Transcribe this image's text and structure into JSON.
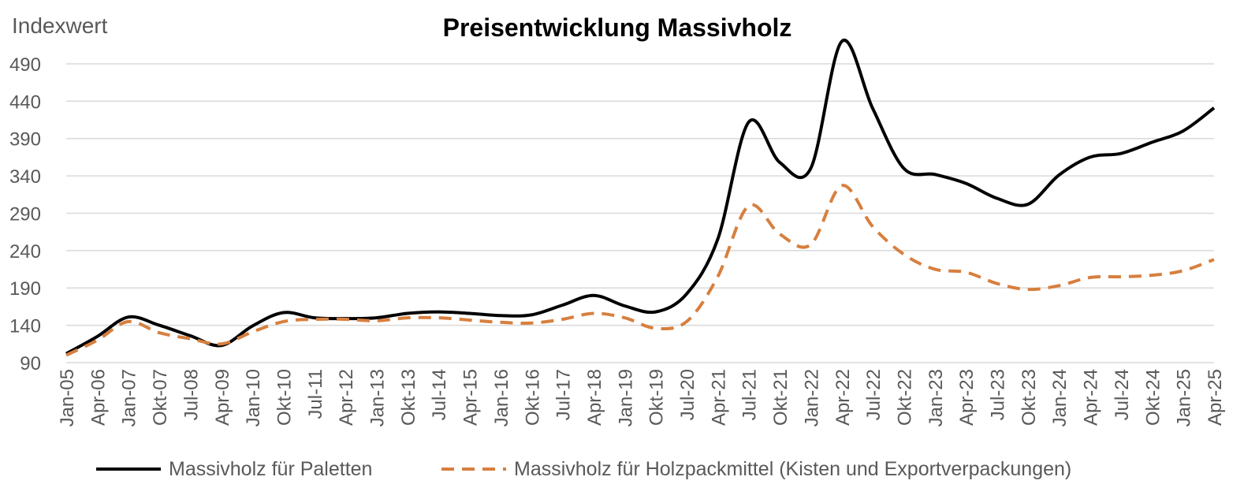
{
  "chart_data": {
    "type": "line",
    "title": "Preisentwicklung Massivholz",
    "ylabel": "Indexwert",
    "xlabel": "",
    "ylim": [
      90,
      510
    ],
    "yticks": [
      90,
      140,
      190,
      240,
      290,
      340,
      390,
      440,
      490
    ],
    "grid": true,
    "legend_position": "bottom",
    "categories": [
      "Jan-05",
      "Apr-06",
      "Jan-07",
      "Okt-07",
      "Jul-08",
      "Apr-09",
      "Jan-10",
      "Okt-10",
      "Jul-11",
      "Apr-12",
      "Jan-13",
      "Okt-13",
      "Jul-14",
      "Apr-15",
      "Jan-16",
      "Okt-16",
      "Jul-17",
      "Apr-18",
      "Jan-19",
      "Okt-19",
      "Jul-20",
      "Apr-21",
      "Jul-21",
      "Okt-21",
      "Jan-22",
      "Apr-22",
      "Jul-22",
      "Okt-22",
      "Jan-23",
      "Apr-23",
      "Jul-23",
      "Okt-23",
      "Jan-24",
      "Apr-24",
      "Jul-24",
      "Okt-24",
      "Jan-25",
      "Apr-25"
    ],
    "x": [
      "Jan-05",
      "Apr-06",
      "Jan-07",
      "Okt-07",
      "Jul-08",
      "Apr-09",
      "Jan-10",
      "Okt-10",
      "Jul-11",
      "Apr-12",
      "Jan-13",
      "Okt-13",
      "Jul-14",
      "Apr-15",
      "Jan-16",
      "Okt-16",
      "Jul-17",
      "Apr-18",
      "Jan-19",
      "Okt-19",
      "Jul-20",
      "Apr-21",
      "Jul-21",
      "Okt-21",
      "Jan-22",
      "Apr-22",
      "Jul-22",
      "Okt-22",
      "Jan-23",
      "Apr-23",
      "Jul-23",
      "Okt-23",
      "Jan-24",
      "Apr-24",
      "Jul-24",
      "Okt-24",
      "Jan-25",
      "Apr-25"
    ],
    "series": [
      {
        "name": "Massivholz für Paletten",
        "color": "#000000",
        "dash": "solid",
        "values": [
          102,
          125,
          151,
          140,
          126,
          113,
          139,
          157,
          150,
          149,
          150,
          156,
          158,
          156,
          153,
          154,
          167,
          180,
          166,
          158,
          182,
          255,
          412,
          358,
          350,
          520,
          430,
          350,
          342,
          330,
          310,
          302,
          341,
          365,
          370,
          385,
          400,
          431
        ]
      },
      {
        "name": "Massivholz für Holzpackmittel (Kisten und Exportverpackungen)",
        "color": "#d77f3e",
        "dash": "dashed",
        "values": [
          100,
          120,
          145,
          130,
          122,
          115,
          131,
          145,
          148,
          148,
          146,
          150,
          150,
          147,
          144,
          143,
          148,
          156,
          150,
          136,
          145,
          205,
          300,
          262,
          248,
          327,
          272,
          235,
          215,
          211,
          196,
          188,
          193,
          204,
          205,
          207,
          213,
          228
        ]
      }
    ]
  }
}
